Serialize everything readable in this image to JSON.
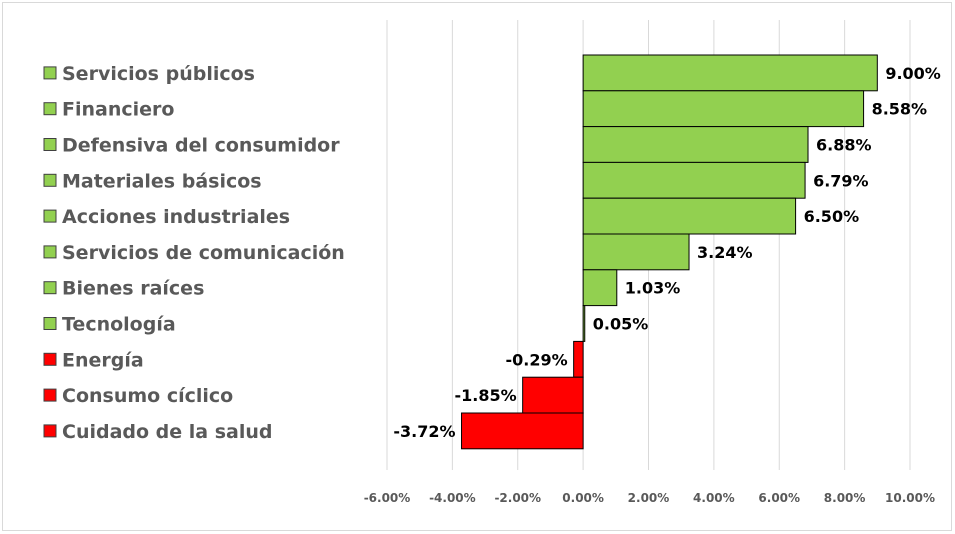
{
  "chart_data": {
    "type": "bar",
    "orientation": "horizontal",
    "categories": [
      "Servicios públicos",
      "Financiero",
      "Defensiva del consumidor",
      "Materiales básicos",
      "Acciones industriales",
      "Servicios de comunicación",
      "Bienes raíces",
      "Tecnología",
      "Energía",
      "Consumo cíclico",
      "Cuidado de la salud"
    ],
    "values": [
      9.0,
      8.58,
      6.88,
      6.79,
      6.5,
      3.24,
      1.03,
      0.05,
      -0.29,
      -1.85,
      -3.72
    ],
    "value_labels": [
      "9.00%",
      "8.58%",
      "6.88%",
      "6.79%",
      "6.50%",
      "3.24%",
      "1.03%",
      "0.05%",
      "-0.29%",
      "-1.85%",
      "-3.72%"
    ],
    "xlim": [
      -6,
      10
    ],
    "x_ticks": [
      -6,
      -4,
      -2,
      0,
      2,
      4,
      6,
      8,
      10
    ],
    "x_tick_labels": [
      "-6.00%",
      "-4.00%",
      "-2.00%",
      "0.00%",
      "2.00%",
      "4.00%",
      "6.00%",
      "8.00%",
      "10.00%"
    ],
    "grid": "vertical",
    "legend_position": "left",
    "colors": {
      "positive": "#92d050",
      "negative": "#ff0000",
      "border": "#000000",
      "grid": "#d9d9d9"
    }
  }
}
